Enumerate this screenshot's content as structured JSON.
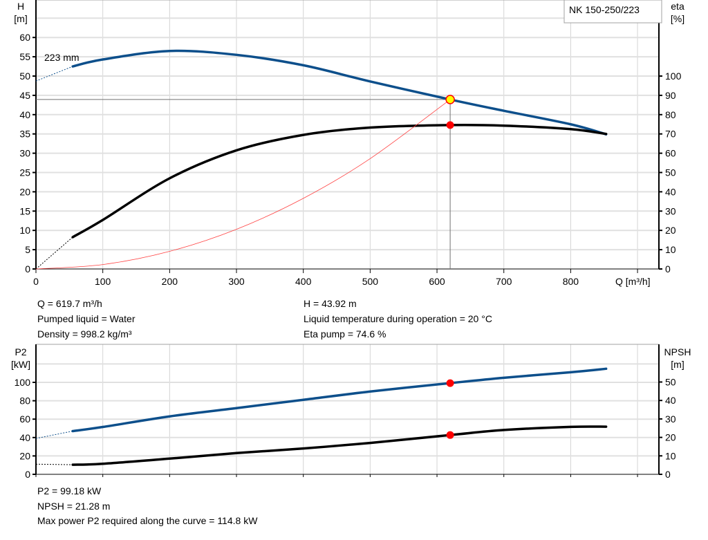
{
  "chart_data": [
    {
      "type": "line",
      "title": "NK 150-250/223",
      "xlabel": "Q [m³/h]",
      "ylabel_left": [
        "H",
        "[m]"
      ],
      "ylabel_right": [
        "eta",
        "[%]"
      ],
      "xlim": [
        0,
        932
      ],
      "ylim_left": [
        0,
        69.7
      ],
      "ylim_right": [
        0,
        139.4
      ],
      "x_ticks": [
        "0",
        "100",
        "200",
        "300",
        "400",
        "500",
        "600",
        "700",
        "800"
      ],
      "y_ticks_left": [
        "0",
        "5",
        "10",
        "15",
        "20",
        "25",
        "30",
        "35",
        "40",
        "45",
        "50",
        "55",
        "60"
      ],
      "y_ticks_right": [
        "0",
        "10",
        "20",
        "30",
        "40",
        "50",
        "60",
        "70",
        "80",
        "90",
        "100"
      ],
      "grid": true,
      "annotation": "223 mm",
      "series": [
        {
          "id": "H",
          "axis": "left",
          "color": "#0d4f8b",
          "x": [
            55,
            100,
            200,
            300,
            400,
            500,
            619.7,
            700,
            800,
            853
          ],
          "y": [
            52.5,
            54.3,
            56.5,
            55.5,
            52.8,
            48.6,
            43.92,
            41.0,
            37.5,
            34.9
          ],
          "extrapolated": {
            "x": [
              0,
              55
            ],
            "y": [
              48.7,
              52.5
            ]
          }
        },
        {
          "id": "eta",
          "axis": "right",
          "color": "#000000",
          "x": [
            55,
            100,
            200,
            300,
            400,
            500,
            619.7,
            700,
            800,
            853
          ],
          "y": [
            16.5,
            25.4,
            47,
            61.5,
            69.5,
            73.3,
            74.6,
            74.3,
            72.5,
            70
          ],
          "extrapolated": {
            "x": [
              0,
              55
            ],
            "y": [
              0,
              16.5
            ]
          }
        },
        {
          "id": "system",
          "axis": "left",
          "color": "#ff4040",
          "x": [
            0,
            100,
            200,
            300,
            400,
            500,
            619.7
          ],
          "y": [
            0,
            1.14,
            4.57,
            10.29,
            18.3,
            28.59,
            43.92
          ]
        }
      ],
      "operating_point": {
        "Q": 619.7,
        "H": 43.92,
        "eta": 74.6
      }
    },
    {
      "type": "line",
      "ylabel_left": [
        "P2",
        "[kW]"
      ],
      "ylabel_right": [
        "NPSH",
        "[m]"
      ],
      "xlim": [
        0,
        932
      ],
      "ylim_left": [
        0,
        140
      ],
      "ylim_right": [
        0,
        70
      ],
      "y_ticks_left": [
        "0",
        "20",
        "40",
        "60",
        "80",
        "100"
      ],
      "y_ticks_right": [
        "0",
        "10",
        "20",
        "30",
        "40",
        "50"
      ],
      "grid": true,
      "series": [
        {
          "id": "P2",
          "axis": "left",
          "color": "#0d4f8b",
          "x": [
            55,
            100,
            200,
            300,
            400,
            500,
            619.7,
            700,
            800,
            853
          ],
          "y": [
            47,
            51.5,
            63,
            72,
            81,
            90,
            99.18,
            105,
            111,
            114.8
          ],
          "extrapolated": {
            "x": [
              0,
              55
            ],
            "y": [
              39,
              47
            ]
          }
        },
        {
          "id": "NPSH",
          "axis": "right",
          "color": "#000000",
          "x": [
            55,
            100,
            200,
            300,
            400,
            500,
            619.7,
            700,
            800,
            853
          ],
          "y": [
            5.2,
            5.7,
            8.5,
            11.5,
            14,
            17,
            21.28,
            24,
            25.7,
            25.8
          ],
          "extrapolated": {
            "x": [
              0,
              55
            ],
            "y": [
              5.5,
              5.2
            ]
          }
        }
      ],
      "operating_point": {
        "Q": 619.7,
        "P2": 99.18,
        "NPSH": 21.28
      }
    }
  ],
  "info_top": {
    "q": "Q = 619.7 m³/h",
    "liquid": "Pumped liquid = Water",
    "density": "Density = 998.2 kg/m³",
    "h": "H = 43.92 m",
    "temp": "Liquid temperature during operation = 20 °C",
    "eta": "Eta pump = 74.6 %"
  },
  "info_bottom": {
    "p2": "P2 = 99.18 kW",
    "npsh": "NPSH = 21.28 m",
    "max_power": "Max power P2 required along the curve = 114.8 kW"
  }
}
